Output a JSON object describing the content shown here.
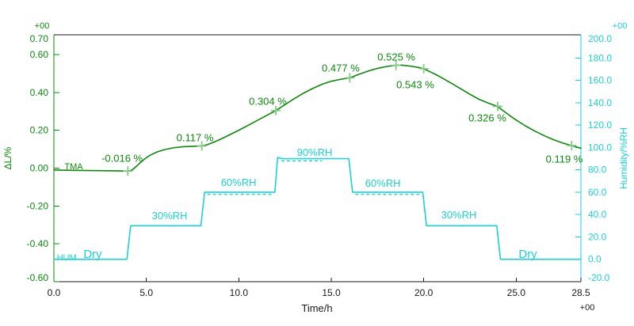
{
  "chart_data": {
    "type": "line",
    "title": "",
    "frame_color": "#1a1a1a",
    "x_axis": {
      "label": "Time/h",
      "exponent": "+00",
      "min": 0,
      "max": 28.5,
      "ticks": [
        5,
        10,
        15,
        20,
        25,
        28.5
      ],
      "tick_labels": [
        {
          "v": 0,
          "label": "0.0"
        },
        {
          "v": 5,
          "label": "5.0"
        },
        {
          "v": 10,
          "label": "10.0"
        },
        {
          "v": 15,
          "label": "15.0"
        },
        {
          "v": 20,
          "label": "20.0"
        },
        {
          "v": 25,
          "label": "25.0"
        },
        {
          "v": 28.5,
          "label": "28.5"
        }
      ]
    },
    "left_axis": {
      "label": "ΔL/%",
      "exponent": "+00",
      "color": "#0a8a0a",
      "min": -0.6,
      "max": 0.7,
      "ticks": [
        0.6,
        0.4,
        0.2,
        0.0,
        -0.2,
        -0.4,
        -0.6
      ],
      "tick_labels": [
        {
          "v": 0.7,
          "label": "0.70"
        },
        {
          "v": 0.6,
          "label": "0.60"
        },
        {
          "v": 0.4,
          "label": "0.40"
        },
        {
          "v": 0.2,
          "label": "0.20"
        },
        {
          "v": 0.0,
          "label": "0.00"
        },
        {
          "v": -0.2,
          "label": "-0.20"
        },
        {
          "v": -0.4,
          "label": "-0.40"
        },
        {
          "v": -0.6,
          "label": "-0.60"
        }
      ]
    },
    "right_axis": {
      "label": "Humidity/%RH",
      "exponent": "+00",
      "color": "#1ad2d2",
      "min": -20,
      "max": 200,
      "ticks": [
        180,
        160,
        140,
        120,
        100,
        80,
        60,
        40,
        20,
        0
      ],
      "tick_labels": [
        {
          "v": 200,
          "label": "200.0"
        },
        {
          "v": 180,
          "label": "180.0"
        },
        {
          "v": 160,
          "label": "160.0"
        },
        {
          "v": 140,
          "label": "140.0"
        },
        {
          "v": 120,
          "label": "120.0"
        },
        {
          "v": 100,
          "label": "100.0"
        },
        {
          "v": 80,
          "label": "80.0"
        },
        {
          "v": 60,
          "label": "60.0"
        },
        {
          "v": 40,
          "label": "40.0"
        },
        {
          "v": 20,
          "label": "20.0"
        },
        {
          "v": 0,
          "label": "0.0"
        },
        {
          "v": -20,
          "label": "-20.0"
        }
      ]
    },
    "series": [
      {
        "name": "TMA",
        "axis": "left",
        "color": "#0a8a0a",
        "marker_color": "#85c985",
        "points": [
          [
            0,
            -0.01
          ],
          [
            1,
            -0.012
          ],
          [
            2,
            -0.013
          ],
          [
            3,
            -0.014
          ],
          [
            3.6,
            -0.015
          ],
          [
            4,
            -0.016
          ],
          [
            4.2,
            -0.012
          ],
          [
            4.4,
            0.004
          ],
          [
            4.6,
            0.022
          ],
          [
            4.9,
            0.048
          ],
          [
            5.2,
            0.068
          ],
          [
            5.6,
            0.086
          ],
          [
            6,
            0.098
          ],
          [
            6.5,
            0.108
          ],
          [
            7,
            0.113
          ],
          [
            7.5,
            0.115
          ],
          [
            8,
            0.117
          ],
          [
            8.3,
            0.124
          ],
          [
            8.6,
            0.135
          ],
          [
            9,
            0.152
          ],
          [
            9.5,
            0.176
          ],
          [
            10,
            0.2
          ],
          [
            10.5,
            0.226
          ],
          [
            11,
            0.252
          ],
          [
            11.5,
            0.278
          ],
          [
            12,
            0.304
          ],
          [
            12.3,
            0.323
          ],
          [
            12.7,
            0.348
          ],
          [
            13,
            0.367
          ],
          [
            13.5,
            0.396
          ],
          [
            14,
            0.421
          ],
          [
            14.5,
            0.443
          ],
          [
            15,
            0.459
          ],
          [
            15.5,
            0.469
          ],
          [
            16,
            0.477
          ],
          [
            16.4,
            0.492
          ],
          [
            16.8,
            0.506
          ],
          [
            17.2,
            0.519
          ],
          [
            17.6,
            0.529
          ],
          [
            18,
            0.537
          ],
          [
            18.3,
            0.541
          ],
          [
            18.5,
            0.543
          ],
          [
            18.8,
            0.544
          ],
          [
            19.1,
            0.541
          ],
          [
            19.4,
            0.537
          ],
          [
            19.7,
            0.532
          ],
          [
            20,
            0.525
          ],
          [
            20.3,
            0.511
          ],
          [
            20.7,
            0.492
          ],
          [
            21,
            0.476
          ],
          [
            21.5,
            0.448
          ],
          [
            22,
            0.419
          ],
          [
            22.5,
            0.39
          ],
          [
            23,
            0.363
          ],
          [
            23.5,
            0.343
          ],
          [
            24,
            0.326
          ],
          [
            24.3,
            0.303
          ],
          [
            24.7,
            0.274
          ],
          [
            25,
            0.254
          ],
          [
            25.5,
            0.223
          ],
          [
            26,
            0.196
          ],
          [
            26.5,
            0.172
          ],
          [
            27,
            0.151
          ],
          [
            27.5,
            0.133
          ],
          [
            28,
            0.119
          ],
          [
            28.5,
            0.105
          ]
        ],
        "markers": [
          {
            "t": 4,
            "v": -0.016
          },
          {
            "t": 8,
            "v": 0.117
          },
          {
            "t": 12,
            "v": 0.304
          },
          {
            "t": 16,
            "v": 0.477
          },
          {
            "t": 18.5,
            "v": 0.543
          },
          {
            "t": 20,
            "v": 0.525
          },
          {
            "t": 24,
            "v": 0.326
          },
          {
            "t": 28,
            "v": 0.119
          }
        ],
        "annotations": [
          {
            "text": "-0.016 %",
            "t": 3.69,
            "v": 0.052
          },
          {
            "text": "0.117 %",
            "t": 7.63,
            "v": 0.161
          },
          {
            "text": "0.304 %",
            "t": 11.57,
            "v": 0.353
          },
          {
            "text": "0.477 %",
            "t": 15.51,
            "v": 0.529
          },
          {
            "text": "0.525 %",
            "t": 18.52,
            "v": 0.587
          },
          {
            "text": "0.543 %",
            "t": 19.54,
            "v": 0.441
          },
          {
            "text": "0.326 %",
            "t": 23.44,
            "v": 0.265
          },
          {
            "text": "0.119 %",
            "t": 27.6,
            "v": 0.048
          }
        ],
        "labels": [
          {
            "text": "TMA",
            "t": 1.07,
            "v": 0.01,
            "size": 11
          }
        ]
      },
      {
        "name": "HUM",
        "axis": "right",
        "color": "#1ad2d2",
        "points": [
          [
            0,
            0
          ],
          [
            3.95,
            0
          ],
          [
            4.15,
            30
          ],
          [
            7.95,
            30
          ],
          [
            8.15,
            60
          ],
          [
            11.95,
            60
          ],
          [
            12.1,
            91
          ],
          [
            12.35,
            90
          ],
          [
            15.95,
            90
          ],
          [
            16.15,
            60
          ],
          [
            19.95,
            60
          ],
          [
            20.15,
            30
          ],
          [
            23.95,
            30
          ],
          [
            24.15,
            0
          ],
          [
            28.5,
            0
          ]
        ],
        "dashed_segments": [
          {
            "t1": 8.3,
            "t2": 11.9,
            "rh": 58
          },
          {
            "t1": 12.3,
            "t2": 14.5,
            "rh": 88
          },
          {
            "t1": 16.3,
            "t2": 19.9,
            "rh": 58
          }
        ],
        "labels": [
          {
            "text": "HUM",
            "t": 0.69,
            "v": 1.9,
            "size": 11
          },
          {
            "text": "Dry",
            "t": 2.1,
            "v": 4.0,
            "size": 15
          },
          {
            "text": "30%RH",
            "t": 6.26,
            "v": 38.7,
            "size": 13
          },
          {
            "text": "60%RH",
            "t": 9.99,
            "v": 68.4,
            "size": 13
          },
          {
            "text": "90%RH",
            "t": 14.1,
            "v": 95.3,
            "size": 13
          },
          {
            "text": "60%RH",
            "t": 17.79,
            "v": 67.7,
            "size": 13
          },
          {
            "text": "30%RH",
            "t": 21.9,
            "v": 39.4,
            "size": 13
          },
          {
            "text": "Dry",
            "t": 25.63,
            "v": 4.0,
            "size": 15
          }
        ]
      }
    ]
  }
}
